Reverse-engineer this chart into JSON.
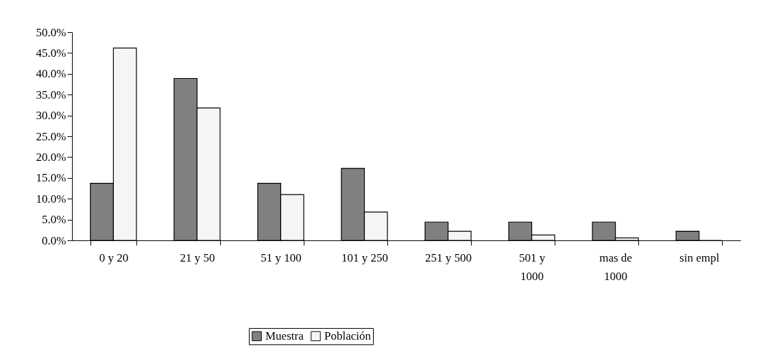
{
  "chart_data": {
    "type": "bar",
    "categories": [
      "0 y 20",
      "21 y 50",
      "51 y 100",
      "101 y 250",
      "251 y 500",
      "501 y\n1000",
      "mas de\n1000",
      "sin empl"
    ],
    "series": [
      {
        "name": "Muestra",
        "color": "#808080",
        "values": [
          13.7,
          38.9,
          13.7,
          17.3,
          4.4,
          4.4,
          4.4,
          2.2
        ]
      },
      {
        "name": "Población",
        "color": "#f5f5f5",
        "values": [
          46.2,
          31.8,
          11.0,
          6.8,
          2.2,
          1.3,
          0.6,
          0.0
        ]
      }
    ],
    "ylim": [
      0,
      50
    ],
    "yticks": [
      {
        "value": 0,
        "label": "0.0%"
      },
      {
        "value": 5,
        "label": "5.0%"
      },
      {
        "value": 10,
        "label": "10.0%"
      },
      {
        "value": 15,
        "label": "15.0%"
      },
      {
        "value": 20,
        "label": "20.0%"
      },
      {
        "value": 25,
        "label": "25.0%"
      },
      {
        "value": 30,
        "label": "30.0%"
      },
      {
        "value": 35,
        "label": "35.0%"
      },
      {
        "value": 40,
        "label": "40.0%"
      },
      {
        "value": 45,
        "label": "45.0%"
      },
      {
        "value": 50,
        "label": "50.0%"
      }
    ],
    "grid": false,
    "legend": "bottom"
  }
}
